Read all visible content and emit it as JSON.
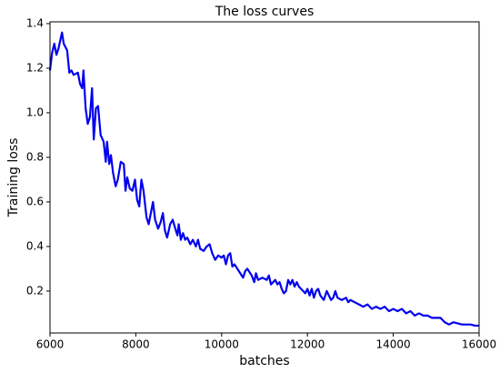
{
  "chart_data": {
    "type": "line",
    "title": "The loss curves",
    "xlabel": "batches",
    "ylabel": "Training loss",
    "x": [
      6000,
      6050,
      6100,
      6150,
      6200,
      6280,
      6320,
      6400,
      6450,
      6500,
      6550,
      6650,
      6700,
      6750,
      6780,
      6830,
      6880,
      6930,
      6980,
      7020,
      7070,
      7120,
      7180,
      7250,
      7300,
      7330,
      7380,
      7420,
      7470,
      7530,
      7580,
      7650,
      7720,
      7760,
      7800,
      7860,
      7920,
      7980,
      8030,
      8080,
      8130,
      8180,
      8250,
      8300,
      8350,
      8400,
      8450,
      8520,
      8580,
      8630,
      8680,
      8730,
      8800,
      8860,
      8920,
      8970,
      9000,
      9050,
      9100,
      9150,
      9200,
      9270,
      9330,
      9400,
      9450,
      9500,
      9580,
      9650,
      9720,
      9780,
      9850,
      9920,
      10000,
      10050,
      10100,
      10150,
      10200,
      10250,
      10300,
      10400,
      10500,
      10550,
      10600,
      10700,
      10760,
      10800,
      10850,
      10950,
      11050,
      11100,
      11150,
      11250,
      11300,
      11350,
      11400,
      11450,
      11500,
      11550,
      11600,
      11650,
      11700,
      11750,
      11800,
      11850,
      11950,
      12000,
      12050,
      12100,
      12150,
      12200,
      12250,
      12300,
      12380,
      12450,
      12500,
      12550,
      12600,
      12650,
      12700,
      12800,
      12900,
      12950,
      13000,
      13100,
      13200,
      13300,
      13400,
      13500,
      13600,
      13700,
      13800,
      13900,
      14000,
      14100,
      14200,
      14300,
      14400,
      14500,
      14600,
      14700,
      14800,
      14900,
      15000,
      15100,
      15200,
      15300,
      15400,
      15500,
      15600,
      15700,
      15800,
      15900,
      16000
    ],
    "series": [
      {
        "name": "Training loss",
        "color": "#0000ee",
        "values": [
          1.19,
          1.27,
          1.31,
          1.26,
          1.29,
          1.36,
          1.31,
          1.28,
          1.18,
          1.19,
          1.17,
          1.18,
          1.13,
          1.11,
          1.19,
          1.02,
          0.95,
          0.98,
          1.11,
          0.88,
          1.02,
          1.03,
          0.9,
          0.87,
          0.78,
          0.87,
          0.77,
          0.81,
          0.73,
          0.67,
          0.7,
          0.78,
          0.77,
          0.65,
          0.71,
          0.66,
          0.65,
          0.7,
          0.61,
          0.58,
          0.7,
          0.65,
          0.53,
          0.5,
          0.55,
          0.6,
          0.52,
          0.48,
          0.51,
          0.55,
          0.47,
          0.44,
          0.5,
          0.52,
          0.48,
          0.45,
          0.5,
          0.43,
          0.46,
          0.43,
          0.44,
          0.41,
          0.43,
          0.4,
          0.43,
          0.39,
          0.38,
          0.4,
          0.41,
          0.37,
          0.34,
          0.36,
          0.35,
          0.36,
          0.32,
          0.36,
          0.37,
          0.31,
          0.32,
          0.29,
          0.26,
          0.29,
          0.3,
          0.27,
          0.24,
          0.28,
          0.25,
          0.26,
          0.25,
          0.27,
          0.23,
          0.25,
          0.23,
          0.24,
          0.21,
          0.19,
          0.2,
          0.25,
          0.23,
          0.25,
          0.22,
          0.24,
          0.22,
          0.21,
          0.19,
          0.21,
          0.18,
          0.21,
          0.17,
          0.2,
          0.21,
          0.18,
          0.16,
          0.2,
          0.18,
          0.16,
          0.17,
          0.2,
          0.17,
          0.16,
          0.17,
          0.15,
          0.16,
          0.15,
          0.14,
          0.13,
          0.14,
          0.12,
          0.13,
          0.12,
          0.13,
          0.11,
          0.12,
          0.11,
          0.12,
          0.1,
          0.11,
          0.09,
          0.1,
          0.09,
          0.09,
          0.08,
          0.08,
          0.08,
          0.06,
          0.05,
          0.06,
          0.055,
          0.05,
          0.05,
          0.05,
          0.045,
          0.045
        ]
      }
    ],
    "xlim": [
      6000,
      16000
    ],
    "xticks": [
      6000,
      8000,
      10000,
      12000,
      14000,
      16000
    ],
    "ylim": [
      0.012,
      1.408
    ],
    "yticks": [
      0.2,
      0.4,
      0.6,
      0.8,
      {
        "value": 1,
        "label": "1.0"
      },
      1.2,
      1.4
    ]
  }
}
